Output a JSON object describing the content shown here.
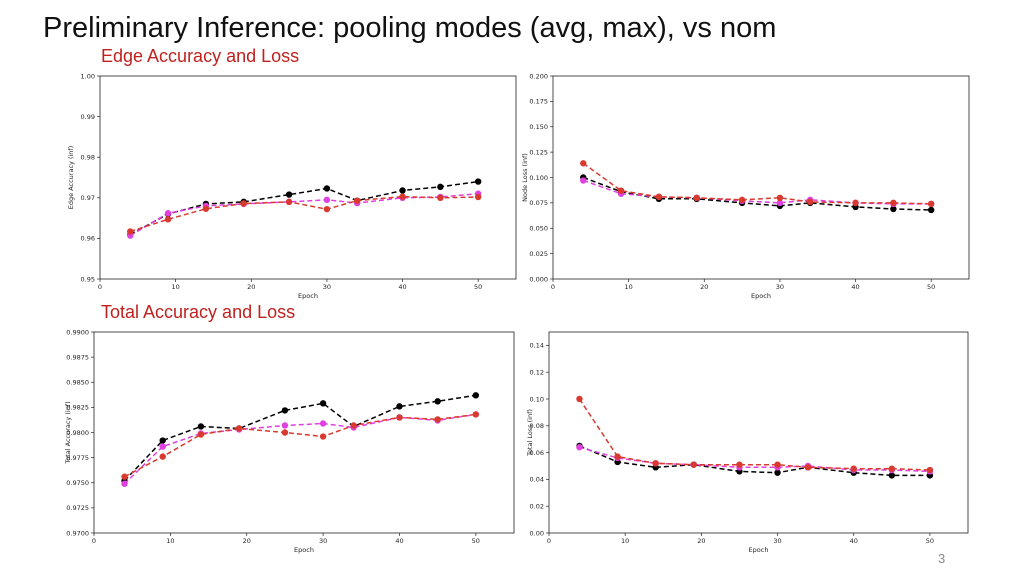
{
  "slide": {
    "title": "Preliminary Inference: pooling modes (avg, max), vs nom",
    "section_edge": "Edge Accuracy and Loss",
    "section_total": "Total Accuracy and Loss",
    "page_number": "3"
  },
  "colors": {
    "series1": "#000000",
    "series2": "#e040e0",
    "series3": "#d93a2f",
    "section": "#c0201e"
  },
  "chart_data": [
    {
      "type": "line",
      "xlabel": "Epoch",
      "ylabel": "Edge Accuracy (inf)",
      "xlim": [
        0,
        55
      ],
      "ylim": [
        0.95,
        1.0
      ],
      "xticks": [
        "0",
        "10",
        "20",
        "30",
        "40",
        "50"
      ],
      "yticks": [
        "0.95",
        "0.96",
        "0.97",
        "0.98",
        "0.99",
        "1.00"
      ],
      "x": [
        4,
        9,
        14,
        19,
        25,
        30,
        34,
        40,
        45,
        50
      ],
      "series": [
        {
          "values": [
            0.961,
            0.966,
            0.9685,
            0.969,
            0.9708,
            0.9723,
            0.9693,
            0.9718,
            0.9727,
            0.974
          ]
        },
        {
          "values": [
            0.9607,
            0.9662,
            0.968,
            0.9685,
            0.969,
            0.9695,
            0.9687,
            0.97,
            0.9702,
            0.971
          ]
        },
        {
          "values": [
            0.9617,
            0.9647,
            0.9673,
            0.9686,
            0.969,
            0.9672,
            0.9693,
            0.9703,
            0.97,
            0.9702
          ]
        }
      ]
    },
    {
      "type": "line",
      "xlabel": "Epoch",
      "ylabel": "Node Loss (inf)",
      "xlim": [
        0,
        55
      ],
      "ylim": [
        0.0,
        0.2
      ],
      "xticks": [
        "0",
        "10",
        "20",
        "30",
        "40",
        "50"
      ],
      "yticks": [
        "0.000",
        "0.025",
        "0.050",
        "0.075",
        "0.100",
        "0.125",
        "0.150",
        "0.175",
        "0.200"
      ],
      "x": [
        4,
        9,
        14,
        19,
        25,
        30,
        34,
        40,
        45,
        50
      ],
      "series": [
        {
          "values": [
            0.1,
            0.086,
            0.079,
            0.079,
            0.075,
            0.072,
            0.075,
            0.071,
            0.069,
            0.068
          ]
        },
        {
          "values": [
            0.097,
            0.084,
            0.081,
            0.08,
            0.077,
            0.075,
            0.078,
            0.075,
            0.074,
            0.074
          ]
        },
        {
          "values": [
            0.114,
            0.087,
            0.081,
            0.08,
            0.078,
            0.08,
            0.076,
            0.075,
            0.075,
            0.074
          ]
        }
      ]
    },
    {
      "type": "line",
      "xlabel": "Epoch",
      "ylabel": "Total Accuracy (inf)",
      "xlim": [
        0,
        55
      ],
      "ylim": [
        0.97,
        0.99
      ],
      "xticks": [
        "0",
        "10",
        "20",
        "30",
        "40",
        "50"
      ],
      "yticks": [
        "0.9700",
        "0.9725",
        "0.9750",
        "0.9775",
        "0.9800",
        "0.9825",
        "0.9850",
        "0.9875",
        "0.9900"
      ],
      "x": [
        4,
        9,
        14,
        19,
        25,
        30,
        34,
        40,
        45,
        50
      ],
      "series": [
        {
          "values": [
            0.9752,
            0.9792,
            0.9806,
            0.9804,
            0.9822,
            0.9829,
            0.9806,
            0.9826,
            0.9831,
            0.9837
          ]
        },
        {
          "values": [
            0.9749,
            0.9786,
            0.9799,
            0.9803,
            0.9807,
            0.9809,
            0.9805,
            0.9815,
            0.9812,
            0.9818
          ]
        },
        {
          "values": [
            0.9756,
            0.9776,
            0.9798,
            0.9804,
            0.98,
            0.9796,
            0.9807,
            0.9815,
            0.9813,
            0.9818
          ]
        }
      ]
    },
    {
      "type": "line",
      "xlabel": "Epoch",
      "ylabel": "Total Loss (inf)",
      "xlim": [
        0,
        55
      ],
      "ylim": [
        0.0,
        0.15
      ],
      "xticks": [
        "0",
        "10",
        "20",
        "30",
        "40",
        "50"
      ],
      "yticks": [
        "0.00",
        "0.02",
        "0.04",
        "0.06",
        "0.08",
        "0.10",
        "0.12",
        "0.14"
      ],
      "x": [
        4,
        9,
        14,
        19,
        25,
        30,
        34,
        40,
        45,
        50
      ],
      "series": [
        {
          "values": [
            0.065,
            0.053,
            0.049,
            0.051,
            0.046,
            0.045,
            0.049,
            0.045,
            0.043,
            0.043
          ]
        },
        {
          "values": [
            0.064,
            0.056,
            0.052,
            0.051,
            0.049,
            0.049,
            0.05,
            0.047,
            0.047,
            0.046
          ]
        },
        {
          "values": [
            0.1,
            0.057,
            0.052,
            0.051,
            0.051,
            0.051,
            0.049,
            0.048,
            0.048,
            0.047
          ]
        }
      ]
    }
  ]
}
